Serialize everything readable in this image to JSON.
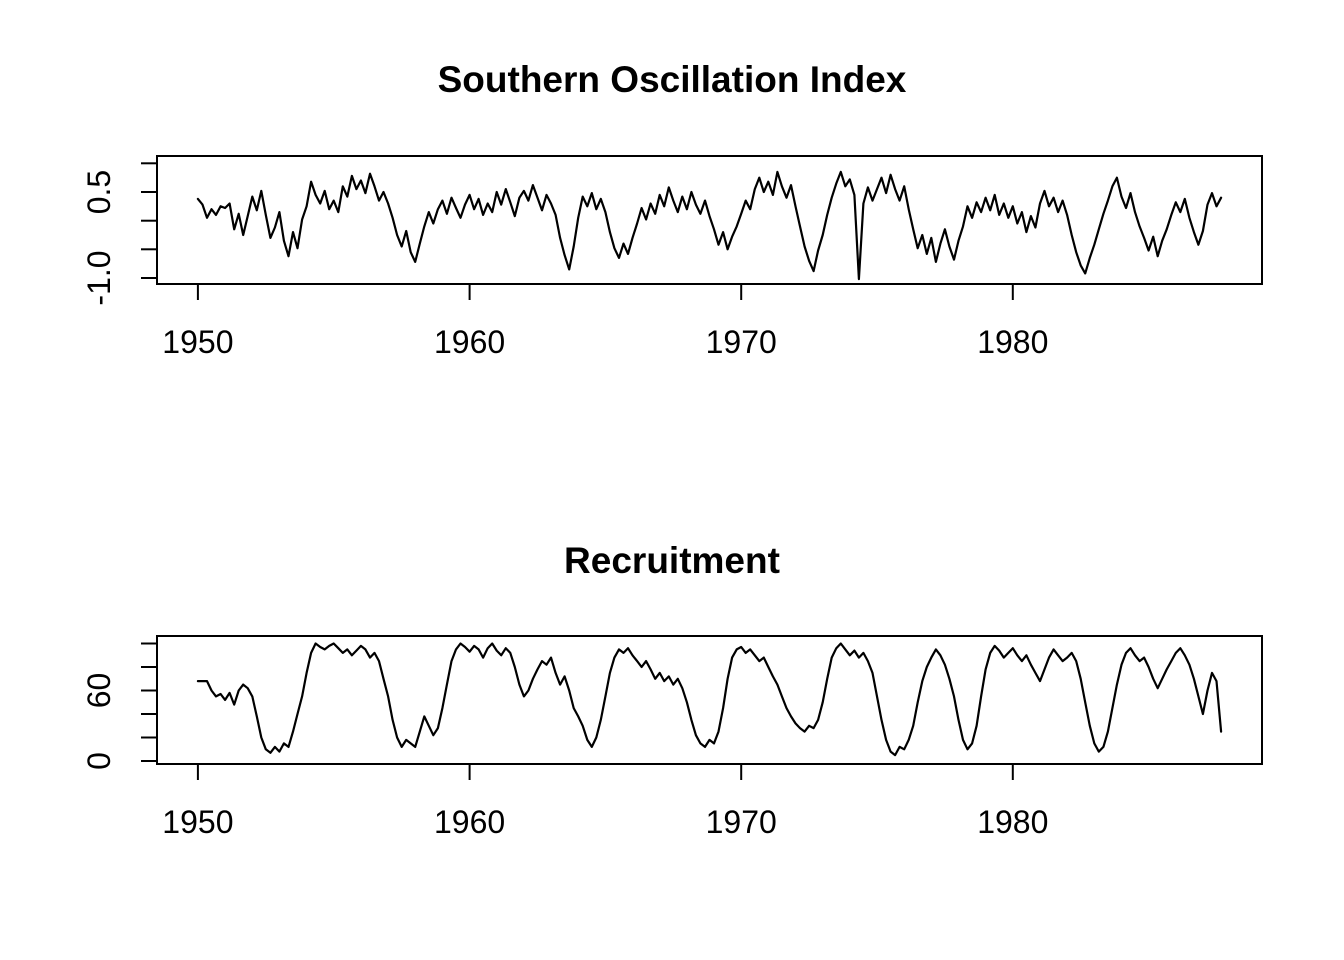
{
  "page": {
    "background": "#ffffff",
    "foreground": "#000000"
  },
  "chart_data": [
    {
      "type": "line",
      "title": "Southern Oscillation Index",
      "xlabel": "",
      "ylabel": "",
      "grid": false,
      "legend": null,
      "line_color": "#000000",
      "x_tick_values": [
        1950,
        1960,
        1970,
        1980
      ],
      "x_tick_labels": [
        "1950",
        "1960",
        "1970",
        "1980"
      ],
      "y_tick_values": [
        1.0,
        0.5,
        0.0,
        -0.5,
        -1.0
      ],
      "y_tick_labels": [
        "",
        "0.5",
        "",
        "",
        "-1.0"
      ],
      "xlim": [
        1948.493,
        1989.174
      ],
      "ylim": [
        -1.105,
        1.128
      ],
      "x_start": 1950.0,
      "x_step_years": 0.1666667,
      "values": [
        0.38,
        0.28,
        0.05,
        0.2,
        0.1,
        0.25,
        0.22,
        0.3,
        -0.15,
        0.12,
        -0.25,
        0.08,
        0.42,
        0.18,
        0.52,
        0.1,
        -0.3,
        -0.12,
        0.15,
        -0.35,
        -0.62,
        -0.2,
        -0.48,
        0.02,
        0.25,
        0.68,
        0.45,
        0.3,
        0.52,
        0.2,
        0.35,
        0.15,
        0.6,
        0.42,
        0.78,
        0.55,
        0.7,
        0.48,
        0.82,
        0.6,
        0.35,
        0.5,
        0.3,
        0.05,
        -0.25,
        -0.45,
        -0.18,
        -0.55,
        -0.72,
        -0.4,
        -0.1,
        0.15,
        -0.05,
        0.2,
        0.35,
        0.12,
        0.4,
        0.22,
        0.05,
        0.28,
        0.45,
        0.2,
        0.38,
        0.1,
        0.3,
        0.15,
        0.5,
        0.28,
        0.55,
        0.32,
        0.08,
        0.4,
        0.52,
        0.35,
        0.62,
        0.4,
        0.18,
        0.45,
        0.3,
        0.1,
        -0.3,
        -0.6,
        -0.85,
        -0.45,
        0.05,
        0.42,
        0.25,
        0.48,
        0.2,
        0.38,
        0.15,
        -0.2,
        -0.48,
        -0.65,
        -0.4,
        -0.58,
        -0.3,
        -0.05,
        0.22,
        0.02,
        0.3,
        0.12,
        0.45,
        0.25,
        0.58,
        0.35,
        0.15,
        0.42,
        0.2,
        0.5,
        0.28,
        0.12,
        0.35,
        0.08,
        -0.15,
        -0.42,
        -0.2,
        -0.5,
        -0.28,
        -0.1,
        0.12,
        0.35,
        0.2,
        0.55,
        0.75,
        0.5,
        0.68,
        0.45,
        0.85,
        0.6,
        0.4,
        0.62,
        0.25,
        -0.1,
        -0.45,
        -0.7,
        -0.88,
        -0.52,
        -0.25,
        0.1,
        0.4,
        0.65,
        0.85,
        0.6,
        0.72,
        0.45,
        -1.02,
        0.3,
        0.58,
        0.35,
        0.55,
        0.75,
        0.48,
        0.8,
        0.55,
        0.35,
        0.6,
        0.2,
        -0.15,
        -0.48,
        -0.25,
        -0.58,
        -0.3,
        -0.72,
        -0.4,
        -0.15,
        -0.45,
        -0.68,
        -0.35,
        -0.1,
        0.25,
        0.05,
        0.32,
        0.15,
        0.4,
        0.18,
        0.45,
        0.1,
        0.3,
        0.05,
        0.25,
        -0.05,
        0.15,
        -0.2,
        0.08,
        -0.12,
        0.3,
        0.52,
        0.25,
        0.4,
        0.15,
        0.35,
        0.1,
        -0.25,
        -0.55,
        -0.78,
        -0.92,
        -0.65,
        -0.42,
        -0.15,
        0.12,
        0.35,
        0.6,
        0.75,
        0.42,
        0.22,
        0.48,
        0.15,
        -0.1,
        -0.3,
        -0.52,
        -0.28,
        -0.62,
        -0.35,
        -0.15,
        0.1,
        0.32,
        0.15,
        0.38,
        0.05,
        -0.2,
        -0.42,
        -0.18,
        0.28,
        0.48,
        0.25,
        0.4
      ]
    },
    {
      "type": "line",
      "title": "Recruitment",
      "xlabel": "",
      "ylabel": "",
      "grid": false,
      "legend": null,
      "line_color": "#000000",
      "x_tick_values": [
        1950,
        1960,
        1970,
        1980
      ],
      "x_tick_labels": [
        "1950",
        "1960",
        "1970",
        "1980"
      ],
      "y_tick_values": [
        100,
        80,
        60,
        40,
        20,
        0
      ],
      "y_tick_labels": [
        "",
        "",
        "60",
        "",
        "",
        "0"
      ],
      "xlim": [
        1948.493,
        1989.174
      ],
      "ylim": [
        -2.55,
        106.4
      ],
      "x_start": 1950.0,
      "x_step_years": 0.1666667,
      "values": [
        68,
        68,
        68,
        60,
        55,
        57,
        52,
        58,
        48,
        60,
        65,
        62,
        55,
        38,
        20,
        10,
        7,
        12,
        8,
        15,
        12,
        25,
        40,
        55,
        75,
        92,
        100,
        97,
        95,
        98,
        100,
        96,
        92,
        95,
        90,
        94,
        98,
        95,
        88,
        92,
        85,
        70,
        55,
        35,
        20,
        12,
        18,
        15,
        12,
        25,
        38,
        30,
        22,
        28,
        45,
        65,
        85,
        95,
        100,
        97,
        93,
        98,
        95,
        88,
        96,
        100,
        94,
        90,
        96,
        92,
        80,
        65,
        55,
        60,
        70,
        78,
        85,
        82,
        88,
        75,
        65,
        72,
        60,
        45,
        38,
        30,
        18,
        12,
        20,
        35,
        55,
        75,
        88,
        95,
        92,
        96,
        90,
        85,
        80,
        85,
        78,
        70,
        75,
        68,
        72,
        65,
        70,
        62,
        50,
        35,
        22,
        15,
        12,
        18,
        15,
        25,
        45,
        70,
        88,
        95,
        97,
        92,
        95,
        90,
        85,
        88,
        80,
        72,
        65,
        55,
        45,
        38,
        32,
        28,
        25,
        30,
        28,
        35,
        50,
        70,
        88,
        96,
        100,
        95,
        90,
        94,
        88,
        92,
        85,
        75,
        55,
        35,
        18,
        8,
        5,
        12,
        10,
        18,
        30,
        50,
        68,
        80,
        88,
        95,
        90,
        82,
        70,
        55,
        35,
        18,
        10,
        15,
        30,
        55,
        78,
        92,
        98,
        94,
        88,
        92,
        96,
        90,
        85,
        90,
        82,
        75,
        68,
        78,
        88,
        95,
        90,
        85,
        88,
        92,
        85,
        70,
        50,
        30,
        15,
        8,
        12,
        25,
        45,
        65,
        82,
        92,
        96,
        90,
        85,
        88,
        80,
        70,
        62,
        70,
        78,
        85,
        92,
        96,
        90,
        82,
        70,
        55,
        40,
        60,
        75,
        68,
        25
      ]
    }
  ]
}
